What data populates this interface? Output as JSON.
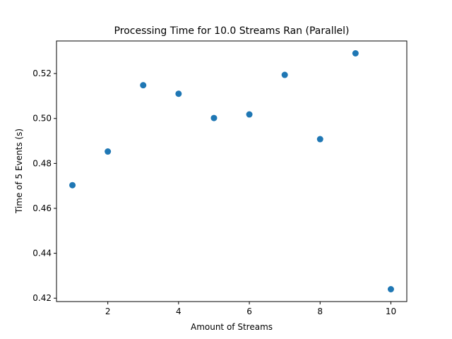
{
  "chart_data": {
    "type": "scatter",
    "title": "Processing Time for 10.0 Streams Ran (Parallel)",
    "xlabel": "Amount of Streams",
    "ylabel": "Time of 5 Events (s)",
    "x": [
      1,
      2,
      3,
      4,
      5,
      6,
      7,
      8,
      9,
      10
    ],
    "y": [
      0.4703,
      0.4853,
      0.5148,
      0.511,
      0.5002,
      0.5018,
      0.5194,
      0.4908,
      0.529,
      0.424
    ],
    "xlim": [
      0.55,
      10.45
    ],
    "ylim": [
      0.4185,
      0.5345
    ],
    "xticks": [
      2,
      4,
      6,
      8,
      10
    ],
    "yticks": [
      0.42,
      0.44,
      0.46,
      0.48,
      0.5,
      0.52
    ],
    "xtick_labels": [
      "2",
      "4",
      "6",
      "8",
      "10"
    ],
    "ytick_labels": [
      "0.42",
      "0.44",
      "0.46",
      "0.48",
      "0.50",
      "0.52"
    ],
    "marker_color": "#1f77b4",
    "grid": false,
    "legend": "none"
  }
}
